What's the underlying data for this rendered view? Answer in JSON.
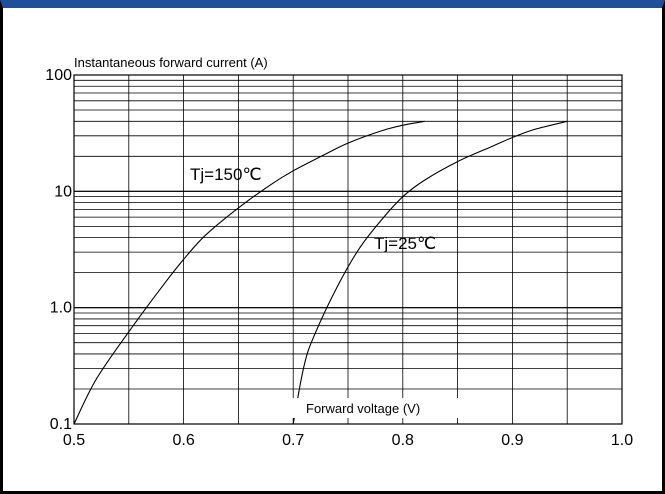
{
  "chart_data": {
    "type": "line",
    "ylabel": "Instantaneous forward current (A)",
    "xlabel": "Forward voltage (V)",
    "xlim": [
      0.5,
      1.0
    ],
    "ylim": [
      0.1,
      100
    ],
    "y_scale": "log",
    "grid": true,
    "x_ticks": [
      "0.5",
      "0.6",
      "0.7",
      "0.8",
      "0.9",
      "1.0"
    ],
    "y_ticks": [
      "0.1",
      "1.0",
      "10",
      "100"
    ],
    "series": [
      {
        "name": "Tj=150℃",
        "x": [
          0.5,
          0.52,
          0.55,
          0.58,
          0.6,
          0.62,
          0.65,
          0.68,
          0.7,
          0.73,
          0.75,
          0.78,
          0.8,
          0.82
        ],
        "y": [
          0.1,
          0.24,
          0.62,
          1.5,
          2.6,
          4.2,
          7.2,
          11.5,
          15,
          21,
          26,
          33,
          37,
          40
        ]
      },
      {
        "name": "Tj=25℃",
        "x": [
          0.7,
          0.71,
          0.72,
          0.74,
          0.76,
          0.78,
          0.8,
          0.82,
          0.85,
          0.88,
          0.9,
          0.92,
          0.95
        ],
        "y": [
          0.1,
          0.32,
          0.6,
          1.5,
          3.2,
          5.6,
          9,
          12.5,
          18,
          24,
          29,
          34,
          40
        ]
      }
    ]
  }
}
